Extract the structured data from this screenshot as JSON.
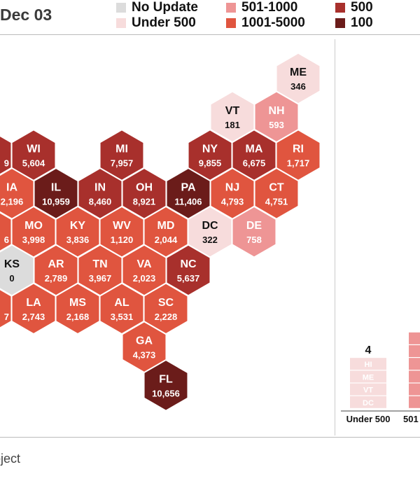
{
  "header": {
    "title": "Dec 03"
  },
  "legend": [
    {
      "label": "No Update",
      "color": "#dcdcdc"
    },
    {
      "label": "Under 500",
      "color": "#f7dcdc"
    },
    {
      "label": "501-1000",
      "color": "#ee9595"
    },
    {
      "label": "1001-5000",
      "color": "#e0553f"
    },
    {
      "label": "500",
      "color": "#a8302c"
    },
    {
      "label": "100",
      "color": "#6b1c1a"
    }
  ],
  "chart_data": {
    "type": "hex-map",
    "states": [
      {
        "abbr": "ME",
        "value": "346",
        "bin": 1,
        "row": 0,
        "col": 6
      },
      {
        "abbr": "VT",
        "value": "181",
        "bin": 1,
        "row": 1,
        "col": 5
      },
      {
        "abbr": "NH",
        "value": "593",
        "bin": 2,
        "row": 1,
        "col": 6
      },
      {
        "abbr": "",
        "value": "9",
        "bin": 4,
        "row": 2,
        "col": -1
      },
      {
        "abbr": "WI",
        "value": "5,604",
        "bin": 4,
        "row": 2,
        "col": 0
      },
      {
        "abbr": "MI",
        "value": "7,957",
        "bin": 4,
        "row": 2,
        "col": 2
      },
      {
        "abbr": "NY",
        "value": "9,855",
        "bin": 4,
        "row": 2,
        "col": 4
      },
      {
        "abbr": "MA",
        "value": "6,675",
        "bin": 4,
        "row": 2,
        "col": 5
      },
      {
        "abbr": "RI",
        "value": "1,717",
        "bin": 3,
        "row": 2,
        "col": 6
      },
      {
        "abbr": "IA",
        "value": "2,196",
        "bin": 3,
        "row": 3,
        "col": 0
      },
      {
        "abbr": "IL",
        "value": "10,959",
        "bin": 5,
        "row": 3,
        "col": 1
      },
      {
        "abbr": "IN",
        "value": "8,460",
        "bin": 4,
        "row": 3,
        "col": 2
      },
      {
        "abbr": "OH",
        "value": "8,921",
        "bin": 4,
        "row": 3,
        "col": 3
      },
      {
        "abbr": "PA",
        "value": "11,406",
        "bin": 5,
        "row": 3,
        "col": 4
      },
      {
        "abbr": "NJ",
        "value": "4,793",
        "bin": 3,
        "row": 3,
        "col": 5
      },
      {
        "abbr": "CT",
        "value": "4,751",
        "bin": 3,
        "row": 3,
        "col": 6
      },
      {
        "abbr": "",
        "value": "6",
        "bin": 3,
        "row": 4,
        "col": -1
      },
      {
        "abbr": "MO",
        "value": "3,998",
        "bin": 3,
        "row": 4,
        "col": 0
      },
      {
        "abbr": "KY",
        "value": "3,836",
        "bin": 3,
        "row": 4,
        "col": 1
      },
      {
        "abbr": "WV",
        "value": "1,120",
        "bin": 3,
        "row": 4,
        "col": 2
      },
      {
        "abbr": "MD",
        "value": "2,044",
        "bin": 3,
        "row": 4,
        "col": 3
      },
      {
        "abbr": "DC",
        "value": "322",
        "bin": 1,
        "row": 4,
        "col": 4
      },
      {
        "abbr": "DE",
        "value": "758",
        "bin": 2,
        "row": 4,
        "col": 5
      },
      {
        "abbr": "KS",
        "value": "0",
        "bin": 0,
        "row": 5,
        "col": 0
      },
      {
        "abbr": "AR",
        "value": "2,789",
        "bin": 3,
        "row": 5,
        "col": 1
      },
      {
        "abbr": "TN",
        "value": "3,967",
        "bin": 3,
        "row": 5,
        "col": 2
      },
      {
        "abbr": "VA",
        "value": "2,023",
        "bin": 3,
        "row": 5,
        "col": 3
      },
      {
        "abbr": "NC",
        "value": "5,637",
        "bin": 4,
        "row": 5,
        "col": 4
      },
      {
        "abbr": "",
        "value": "7",
        "bin": 3,
        "row": 6,
        "col": -1
      },
      {
        "abbr": "LA",
        "value": "2,743",
        "bin": 3,
        "row": 6,
        "col": 0
      },
      {
        "abbr": "MS",
        "value": "2,168",
        "bin": 3,
        "row": 6,
        "col": 1
      },
      {
        "abbr": "AL",
        "value": "3,531",
        "bin": 3,
        "row": 6,
        "col": 2
      },
      {
        "abbr": "SC",
        "value": "2,228",
        "bin": 3,
        "row": 6,
        "col": 3
      },
      {
        "abbr": "GA",
        "value": "4,373",
        "bin": 3,
        "row": 7,
        "col": 3
      },
      {
        "abbr": "FL",
        "value": "10,656",
        "bin": 5,
        "row": 8,
        "col": 3
      }
    ],
    "bars": [
      {
        "category": "Under 500",
        "count": "4",
        "states": [
          "HI",
          "ME",
          "VT",
          "DC"
        ],
        "bin": 1
      },
      {
        "category": "501",
        "count": "",
        "states": [
          "",
          "",
          "",
          "",
          "",
          ""
        ],
        "bin": 2
      }
    ]
  },
  "footer": {
    "text": "oject"
  }
}
